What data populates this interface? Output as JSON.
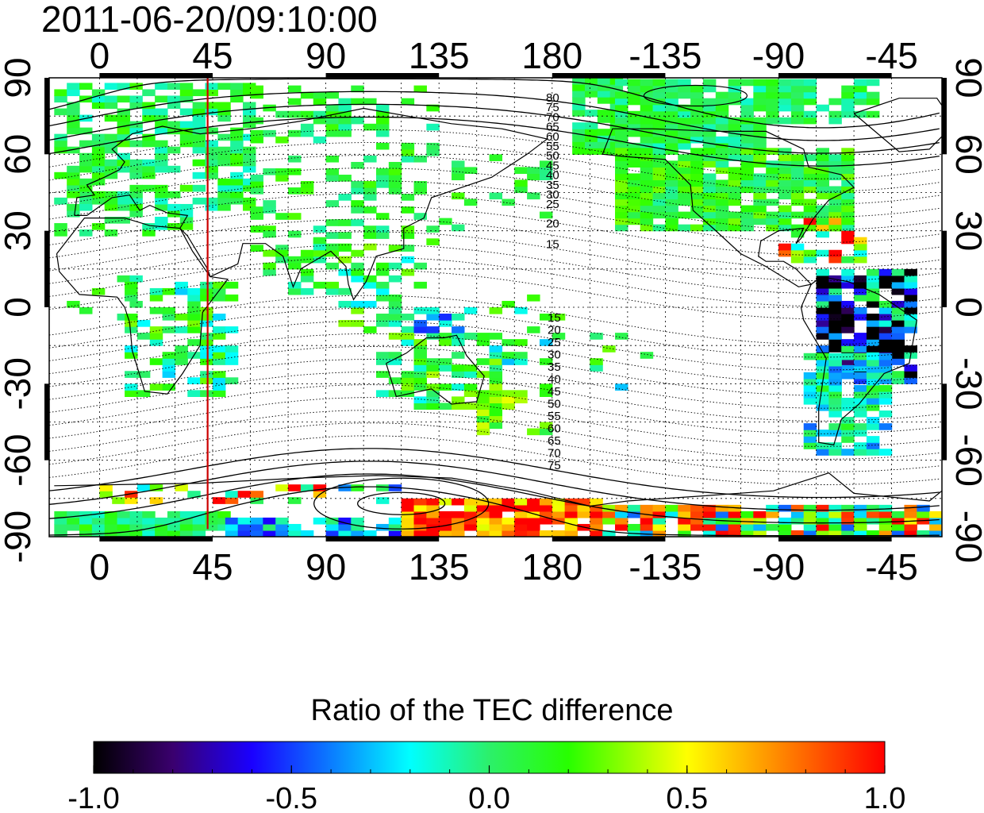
{
  "timestamp": "2011-06-20/09:10:00",
  "map": {
    "lon_ticks": [
      {
        "value": 0,
        "label": "0"
      },
      {
        "value": 45,
        "label": "45"
      },
      {
        "value": 90,
        "label": "90"
      },
      {
        "value": 135,
        "label": "135"
      },
      {
        "value": 180,
        "label": "180"
      },
      {
        "value": 225,
        "label": "-135"
      },
      {
        "value": 270,
        "label": "-90"
      },
      {
        "value": 315,
        "label": "-45"
      }
    ],
    "lat_ticks": [
      {
        "value": 90,
        "label": "90"
      },
      {
        "value": 60,
        "label": "60"
      },
      {
        "value": 30,
        "label": "30"
      },
      {
        "value": 0,
        "label": "0"
      },
      {
        "value": -30,
        "label": "-30"
      },
      {
        "value": -60,
        "label": "-60"
      },
      {
        "value": -90,
        "label": "-90"
      }
    ],
    "lon_range": [
      -20,
      335
    ],
    "lat_range": [
      -90,
      90
    ],
    "grid": true,
    "grid_style": "dotted",
    "marker_meridian": {
      "lon": 43,
      "color": "#cc0000"
    },
    "contour_labels_north": [
      "80",
      "75",
      "70",
      "65",
      "60",
      "55",
      "50",
      "45",
      "40",
      "35",
      "30",
      "25",
      "20",
      "15"
    ],
    "contour_labels_south": [
      "15",
      "20",
      "25",
      "30",
      "35",
      "40",
      "45",
      "50",
      "55",
      "60",
      "65",
      "70",
      "75"
    ],
    "colors": {
      "frame": "#000000",
      "coast": "#000000",
      "contour": "#000000"
    }
  },
  "colorbar": {
    "title": "Ratio of the TEC difference",
    "range": [
      -1.0,
      1.0
    ],
    "ticks": [
      {
        "value": -1.0,
        "label": "-1.0"
      },
      {
        "value": -0.5,
        "label": "-0.5"
      },
      {
        "value": 0.0,
        "label": "0.0"
      },
      {
        "value": 0.5,
        "label": "0.5"
      },
      {
        "value": 1.0,
        "label": "1.0"
      }
    ],
    "stops": [
      {
        "value": -1.0,
        "color": "#000000"
      },
      {
        "value": -0.8,
        "color": "#3a006e"
      },
      {
        "value": -0.6,
        "color": "#1a00ff"
      },
      {
        "value": -0.4,
        "color": "#0b7cff"
      },
      {
        "value": -0.2,
        "color": "#00ffff"
      },
      {
        "value": 0.0,
        "color": "#2cf06a"
      },
      {
        "value": 0.2,
        "color": "#28ff00"
      },
      {
        "value": 0.4,
        "color": "#b8ff00"
      },
      {
        "value": 0.5,
        "color": "#ffff00"
      },
      {
        "value": 0.7,
        "color": "#ff9900"
      },
      {
        "value": 1.0,
        "color": "#ff0000"
      }
    ]
  }
}
